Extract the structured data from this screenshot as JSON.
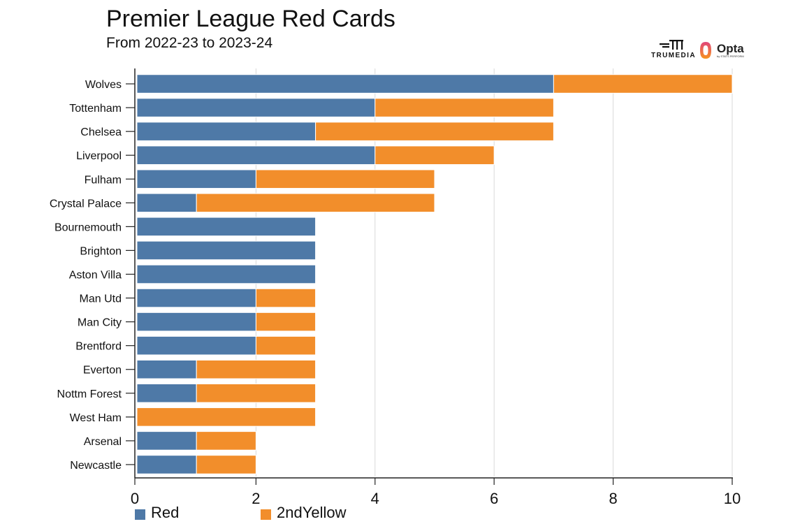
{
  "header": {
    "title": "Premier League Red Cards",
    "subtitle": "From 2022-23 to 2023-24"
  },
  "logos": {
    "trumedia_text": "TRUMEDIA",
    "opta_text": "Opta",
    "opta_sub": "by STATS PERFORM"
  },
  "colors": {
    "red": "#4e79a7",
    "second_yellow": "#f28e2b",
    "grid": "#d9d9d9",
    "axis": "#222222"
  },
  "chart_data": {
    "type": "bar",
    "orientation": "horizontal",
    "stacked": true,
    "title": "Premier League Red Cards",
    "subtitle": "From 2022-23 to 2023-24",
    "xlabel": "",
    "ylabel": "",
    "xlim": [
      0,
      10
    ],
    "x_ticks": [
      0,
      2,
      4,
      6,
      8,
      10
    ],
    "grid": true,
    "legend_position": "bottom-left",
    "categories": [
      "Wolves",
      "Tottenham",
      "Chelsea",
      "Liverpool",
      "Fulham",
      "Crystal Palace",
      "Bournemouth",
      "Brighton",
      "Aston Villa",
      "Man Utd",
      "Man City",
      "Brentford",
      "Everton",
      "Nottm Forest",
      "West Ham",
      "Arsenal",
      "Newcastle"
    ],
    "series": [
      {
        "name": "Red",
        "color": "#4e79a7",
        "values": [
          7,
          4,
          3,
          4,
          2,
          1,
          3,
          3,
          3,
          2,
          2,
          2,
          1,
          1,
          0,
          1,
          1
        ]
      },
      {
        "name": "2ndYellow",
        "color": "#f28e2b",
        "values": [
          3,
          3,
          4,
          2,
          3,
          4,
          0,
          0,
          0,
          1,
          1,
          1,
          2,
          2,
          3,
          1,
          1
        ]
      }
    ]
  }
}
